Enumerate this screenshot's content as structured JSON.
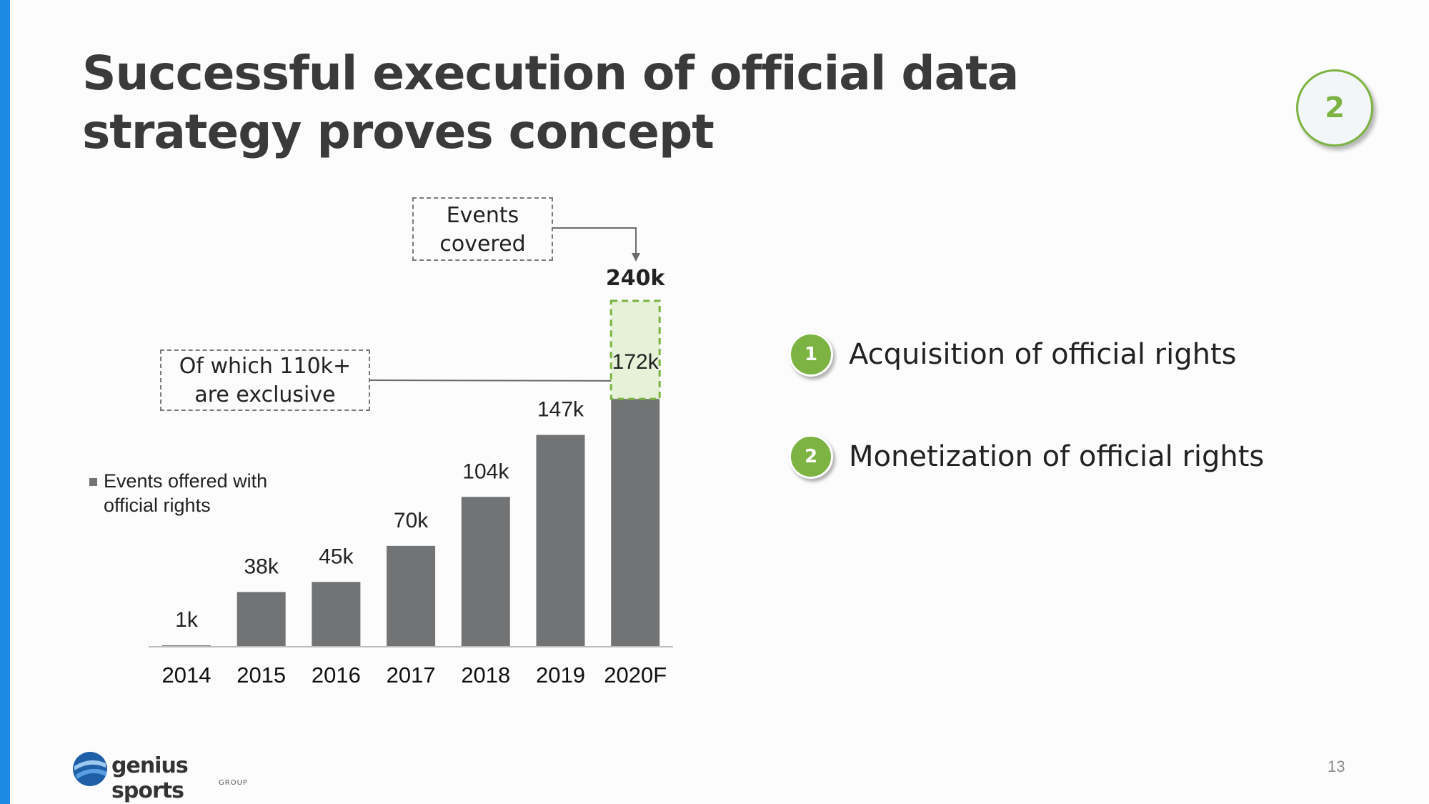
{
  "slide": {
    "title": "Successful execution of official data strategy proves concept",
    "section_number": "2",
    "page_number": "13"
  },
  "callouts": {
    "events_covered": [
      "Events",
      "covered"
    ],
    "exclusive": [
      "Of which 110k+",
      "are exclusive"
    ]
  },
  "legend": {
    "label_line1": "Events offered with",
    "label_line2": "official rights"
  },
  "bullets": [
    {
      "number": "1",
      "text": "Acquisition of official rights"
    },
    {
      "number": "2",
      "text": "Monetization of official rights"
    }
  ],
  "logo": {
    "name": "genius sports",
    "sub": "GROUP"
  },
  "colors": {
    "accent_bar": "#1e88e5",
    "bar": "#717375",
    "green": "#7cb342",
    "green_fill": "#e6f2d8"
  },
  "chart_data": {
    "type": "bar",
    "categories": [
      "2014",
      "2015",
      "2016",
      "2017",
      "2018",
      "2019",
      "2020F"
    ],
    "series": [
      {
        "name": "Events offered with official rights",
        "values": [
          1,
          38,
          45,
          70,
          104,
          147,
          172
        ],
        "labels": [
          "1k",
          "38k",
          "45k",
          "70k",
          "104k",
          "147k",
          "172k"
        ]
      }
    ],
    "total_events_covered": {
      "category": "2020F",
      "value": 240,
      "label": "240k"
    },
    "exclusive_note": "Of which 110k+ are exclusive",
    "ylim": [
      0,
      240
    ],
    "units": "k",
    "grid": false,
    "legend_position": "left"
  }
}
